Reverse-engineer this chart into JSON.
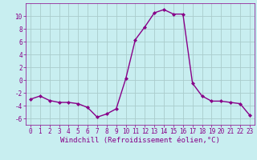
{
  "x": [
    0,
    1,
    2,
    3,
    4,
    5,
    6,
    7,
    8,
    9,
    10,
    11,
    12,
    13,
    14,
    15,
    16,
    17,
    18,
    19,
    20,
    21,
    22,
    23
  ],
  "y": [
    -3.0,
    -2.5,
    -3.2,
    -3.5,
    -3.5,
    -3.7,
    -4.3,
    -5.8,
    -5.3,
    -4.5,
    0.2,
    6.3,
    8.3,
    10.5,
    11.0,
    10.3,
    10.3,
    -0.5,
    -2.5,
    -3.3,
    -3.3,
    -3.5,
    -3.7,
    -5.5
  ],
  "line_color": "#880088",
  "marker": "D",
  "marker_size": 2.0,
  "linewidth": 1.0,
  "bg_color": "#c8eef0",
  "grid_color": "#aacccc",
  "xlabel": "Windchill (Refroidissement éolien,°C)",
  "xlabel_color": "#880088",
  "xlim": [
    -0.5,
    23.5
  ],
  "ylim": [
    -7,
    12
  ],
  "yticks": [
    -6,
    -4,
    -2,
    0,
    2,
    4,
    6,
    8,
    10
  ],
  "xticks": [
    0,
    1,
    2,
    3,
    4,
    5,
    6,
    7,
    8,
    9,
    10,
    11,
    12,
    13,
    14,
    15,
    16,
    17,
    18,
    19,
    20,
    21,
    22,
    23
  ],
  "tick_color": "#880088",
  "tick_label_fontsize": 5.5,
  "xlabel_fontsize": 6.5
}
